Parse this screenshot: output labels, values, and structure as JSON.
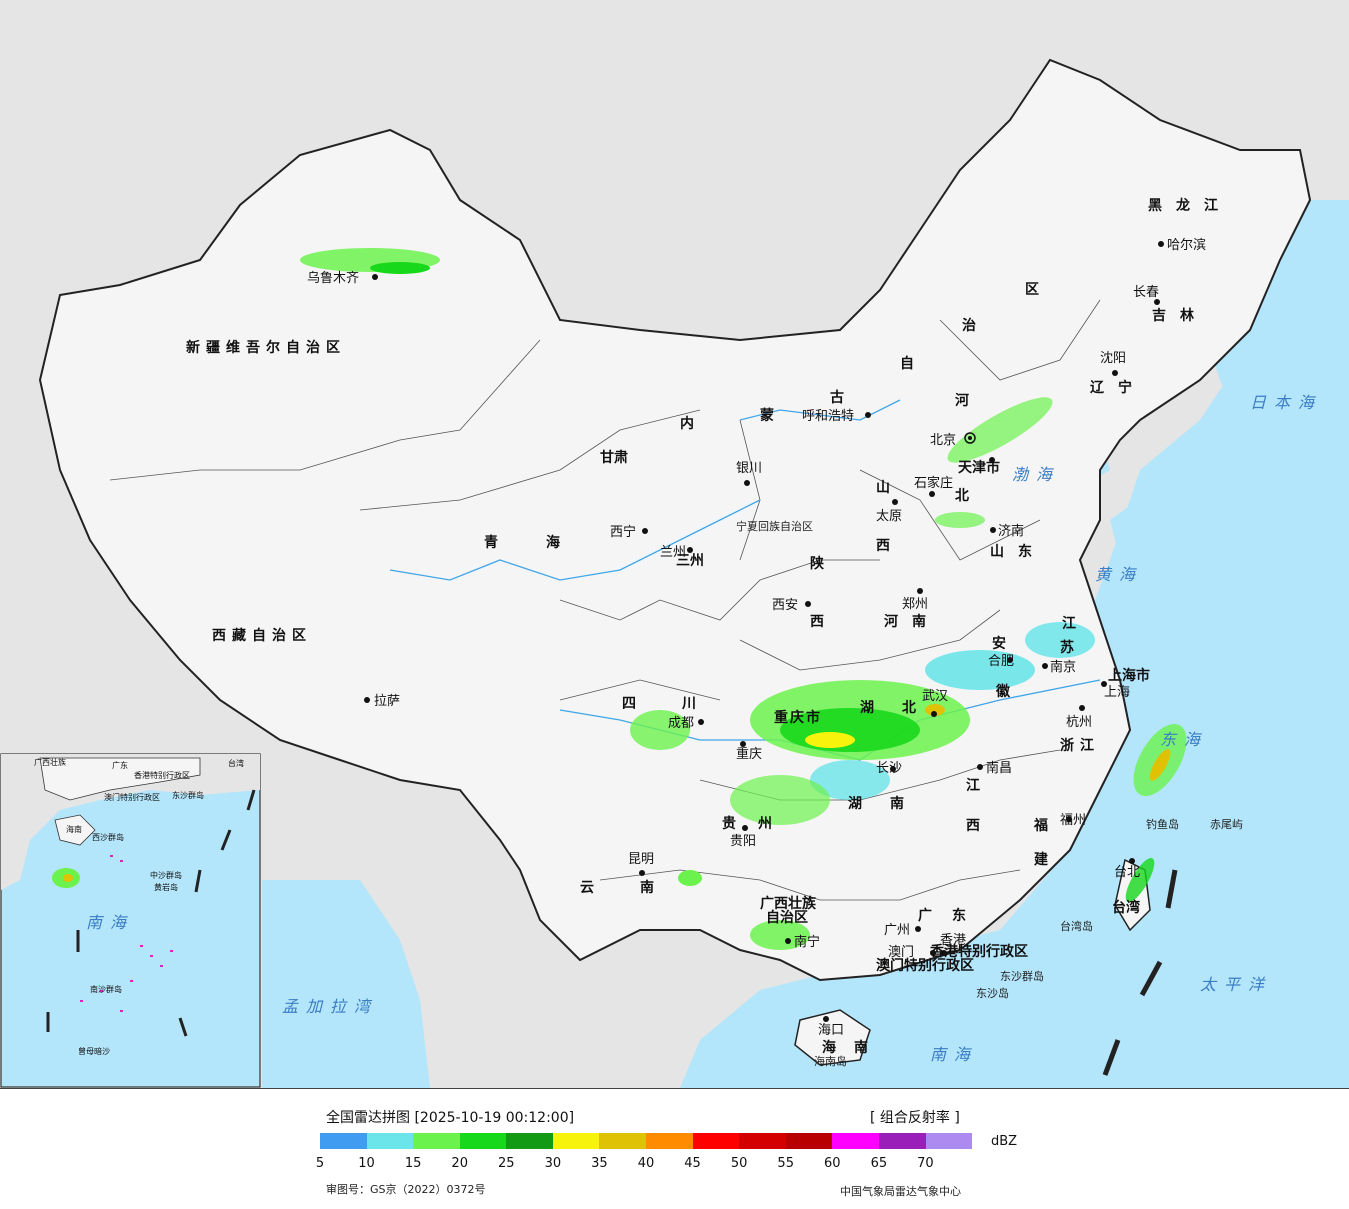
{
  "map": {
    "regions": {
      "xinjiang": "新疆维吾尔自治区",
      "xizang": "西藏自治区",
      "qinghai": "青海",
      "gansu": "甘肃",
      "neimenggu_1": "内",
      "neimenggu_2": "蒙",
      "neimenggu_3": "古",
      "neimenggu_4": "自",
      "neimenggu_5": "治",
      "neimenggu_6": "区",
      "heilongjiang": "黑龙江",
      "jilin": "吉林",
      "liaoning": "辽宁",
      "hebei": "北",
      "hebei_2": "河",
      "shanxi_1": "山",
      "shanxi_2": "西",
      "shaanxi_1": "陕",
      "shaanxi_2": "西",
      "shandong": "山东",
      "henan": "河南",
      "jiangsu_1": "江",
      "jiangsu_2": "苏",
      "anhui_1": "安",
      "anhui_2": "徽",
      "hubei": "湖北",
      "hunan": "湖南",
      "jiangxi_1": "江",
      "jiangxi_2": "西",
      "zhejiang": "浙江",
      "fujian_1": "福",
      "fujian_2": "建",
      "sichuan": "四川",
      "chongqing": "重庆市",
      "guizhou": "贵州",
      "yunnan": "云南",
      "guangxi_1": "广西壮族",
      "guangxi_2": "自治区",
      "guangdong": "广东",
      "hainan": "海南",
      "shanghai": "上海市",
      "taiwan": "台湾",
      "tianjin": "天津市",
      "ningxia": "宁夏回族自治区",
      "gansu_3": "三州",
      "hk": "香港特别行政区",
      "macau": "澳门特别行政区"
    },
    "cities": {
      "urumqi": "乌鲁木齐",
      "lhasa": "拉萨",
      "xining": "西宁",
      "lanzhou": "兰州",
      "yinchuan": "银川",
      "hohhot": "呼和浩特",
      "beijing": "北京",
      "tianjin": "天津",
      "shijiazhuang": "石家庄",
      "taiyuan": "太原",
      "jinan": "济南",
      "zhengzhou": "郑州",
      "xian": "西安",
      "chengdu": "成都",
      "chongqing": "重庆",
      "guiyang": "贵阳",
      "kunming": "昆明",
      "nanning": "南宁",
      "guangzhou": "广州",
      "hongkong": "香港",
      "macao": "澳门",
      "haikou": "海口",
      "changsha": "长沙",
      "wuhan": "武汉",
      "nanchang": "南昌",
      "hefei": "合肥",
      "nanjing": "南京",
      "shanghai": "上海",
      "hangzhou": "杭州",
      "fuzhou": "福州",
      "taipei": "台北",
      "shenyang": "沈阳",
      "changchun": "长春",
      "harbin": "哈尔滨"
    },
    "seas": {
      "bohai": "渤海",
      "huanghai": "黄海",
      "donghai": "东海",
      "nanhai": "南海",
      "japan_sea": "日本海",
      "pacific": "太平洋",
      "bengal": "孟加拉湾"
    },
    "islands": {
      "hainan_island": "海南岛",
      "taiwan_island": "台湾岛",
      "dongsha_islands": "东沙群岛",
      "dongsha_island": "东沙岛",
      "diaoyu": "钓鱼岛",
      "chiwei": "赤尾屿"
    },
    "inset": {
      "guangdong": "广东",
      "guangxi": "广西壮族",
      "taiwan": "台湾",
      "hk": "香港特别行政区",
      "macau": "澳门特别行政区",
      "hainan": "海南",
      "dongsha": "东沙群岛",
      "xisha": "西沙群岛",
      "zhongsha": "中沙群岛",
      "huangyan": "黄岩岛",
      "nanhai": "南海",
      "nansha": "南沙群岛",
      "zengmu": "曾母暗沙"
    }
  },
  "legend": {
    "title": "全国雷达拼图 [2025-10-19 00:12:00]",
    "product": "[ 组合反射率 ]",
    "unit": "dBZ",
    "colors": [
      "#3f9cf0",
      "#6be5e9",
      "#6cf24d",
      "#17d81b",
      "#139a14",
      "#f7f30c",
      "#e0c205",
      "#ff8c00",
      "#ff0000",
      "#d40000",
      "#b80000",
      "#ff00ff",
      "#9a1fb8",
      "#ad8af0"
    ],
    "ticks": [
      "5",
      "10",
      "15",
      "20",
      "25",
      "30",
      "35",
      "40",
      "45",
      "50",
      "55",
      "60",
      "65",
      "70"
    ],
    "approval": "审图号：GS京（2022）0372号",
    "producer": "中国气象局雷达气象中心"
  }
}
